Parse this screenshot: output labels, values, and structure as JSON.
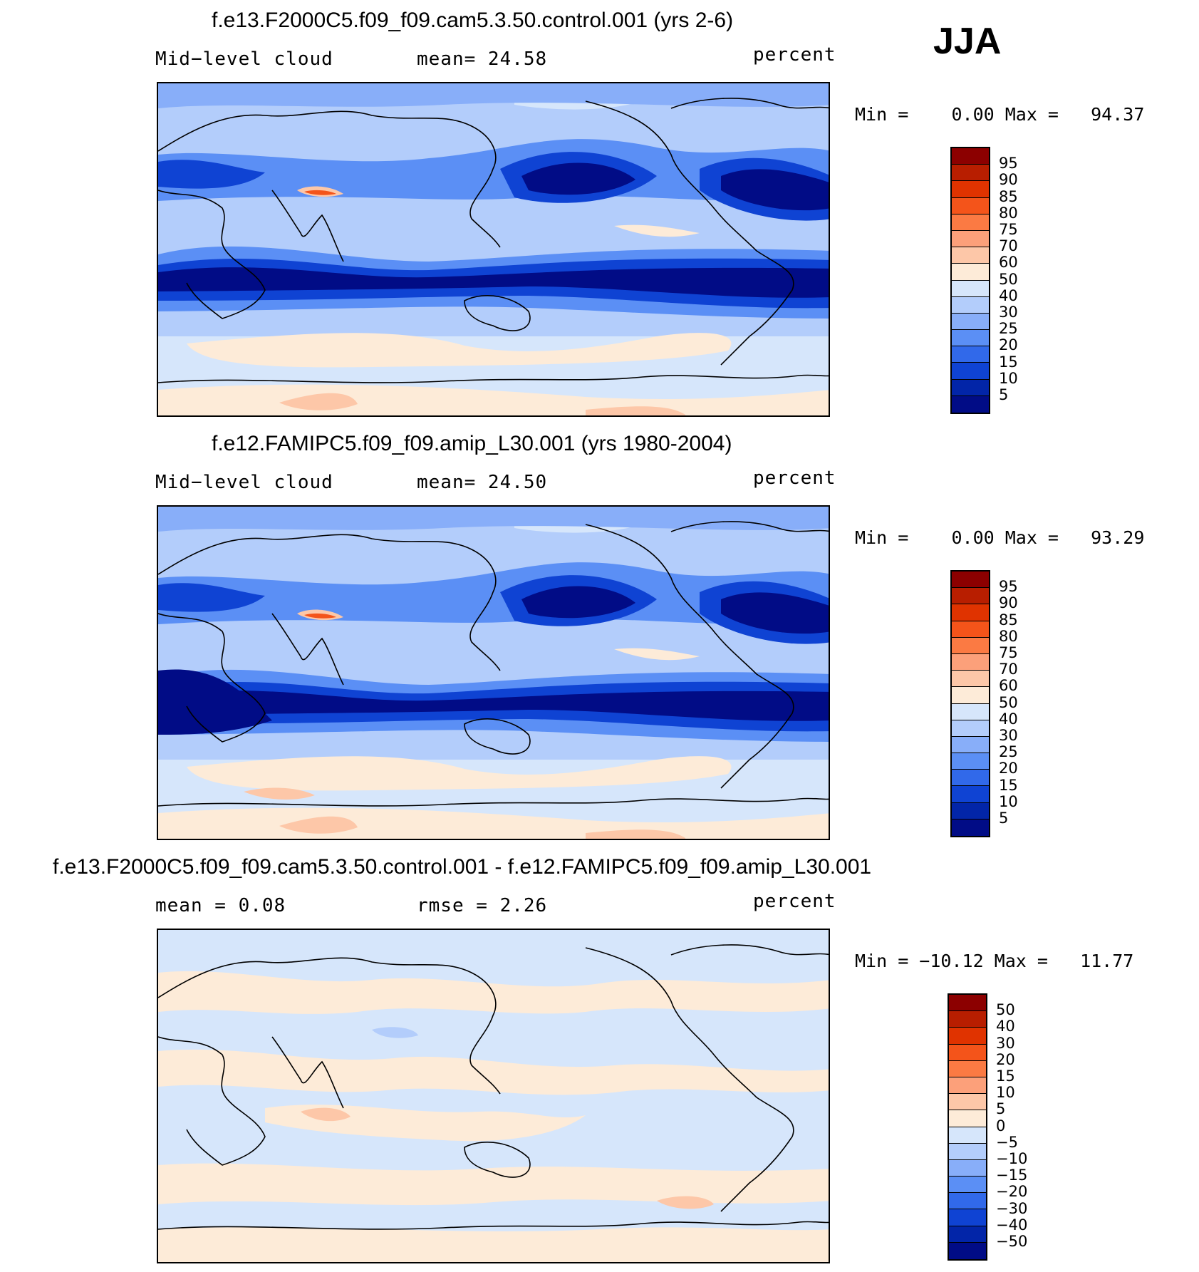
{
  "season": "JJA",
  "panels": [
    {
      "title": "f.e13.F2000C5.f09_f09.cam5.3.50.control.001 (yrs 2-6)",
      "left_label": "Mid−level cloud",
      "center_label": "mean=   24.58",
      "units": "percent",
      "minmax": "Min =    0.00 Max =   94.37",
      "type": "model"
    },
    {
      "title": "f.e12.FAMIPC5.f09_f09.amip_L30.001 (yrs 1980-2004)",
      "left_label": "Mid−level cloud",
      "center_label": "mean=   24.50",
      "units": "percent",
      "minmax": "Min =    0.00 Max =   93.29",
      "type": "model"
    },
    {
      "title": "f.e13.F2000C5.f09_f09.cam5.3.50.control.001 - f.e12.FAMIPC5.f09_f09.amip_L30.001",
      "left_label": "mean =    0.08",
      "center_label": "rmse =    2.26",
      "units": "percent",
      "minmax": "Min = −10.12 Max =   11.77",
      "type": "diff"
    }
  ],
  "colorbars": {
    "model": {
      "labels": [
        "95",
        "90",
        "85",
        "80",
        "75",
        "70",
        "60",
        "50",
        "40",
        "30",
        "25",
        "20",
        "15",
        "10",
        "5"
      ],
      "colors": [
        "#8c0000",
        "#b81e00",
        "#e03300",
        "#f4541a",
        "#fb7a43",
        "#fca07a",
        "#fdc7a8",
        "#fdebd8",
        "#d6e6fb",
        "#b3cdfb",
        "#88aef9",
        "#5b8ff5",
        "#3169ea",
        "#0f43d3",
        "#0225a8",
        "#010c86"
      ]
    },
    "diff": {
      "labels": [
        "50",
        "40",
        "30",
        "20",
        "15",
        "10",
        "5",
        "0",
        "−5",
        "−10",
        "−15",
        "−20",
        "−30",
        "−40",
        "−50"
      ],
      "colors": [
        "#8c0000",
        "#b81e00",
        "#e03300",
        "#f4541a",
        "#fb7a43",
        "#fca07a",
        "#fdc7a8",
        "#fdebd8",
        "#d6e6fb",
        "#b3cdfb",
        "#88aef9",
        "#5b8ff5",
        "#3169ea",
        "#0f43d3",
        "#0225a8",
        "#010c86"
      ]
    }
  }
}
